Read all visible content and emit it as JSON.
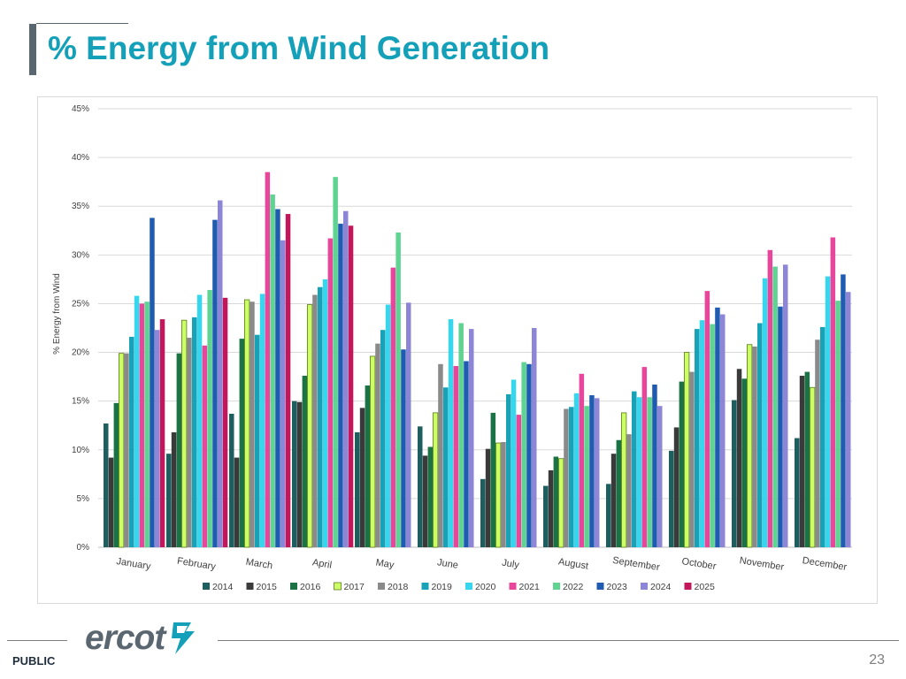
{
  "slide": {
    "title": "% Energy from Wind Generation",
    "footer_label": "PUBLIC",
    "page_number": "23",
    "logo_text": "ercot"
  },
  "chart_data": {
    "type": "bar",
    "title": "",
    "xlabel": "",
    "ylabel": "% Energy from Wind",
    "ylim": [
      0,
      45
    ],
    "yticks": [
      0,
      5,
      10,
      15,
      20,
      25,
      30,
      35,
      40,
      45
    ],
    "ytick_labels": [
      "0%",
      "5%",
      "10%",
      "15%",
      "20%",
      "25%",
      "30%",
      "35%",
      "40%",
      "45%"
    ],
    "grid": true,
    "legend_position": "bottom",
    "categories": [
      "January",
      "February",
      "March",
      "April",
      "May",
      "June",
      "July",
      "August",
      "September",
      "October",
      "November",
      "December"
    ],
    "series": [
      {
        "name": "2014",
        "color": "#1d5e5e",
        "values": [
          12.7,
          9.6,
          13.7,
          15.0,
          11.8,
          12.4,
          7.0,
          6.3,
          6.5,
          9.9,
          15.1,
          11.2
        ]
      },
      {
        "name": "2015",
        "color": "#3a3a3a",
        "values": [
          9.2,
          11.8,
          9.2,
          14.9,
          14.3,
          9.4,
          10.1,
          7.9,
          9.6,
          12.3,
          18.3,
          17.6
        ]
      },
      {
        "name": "2016",
        "color": "#1b7345",
        "values": [
          14.8,
          19.9,
          21.4,
          17.6,
          16.6,
          10.3,
          13.8,
          9.3,
          11.0,
          17.0,
          17.3,
          18.0
        ]
      },
      {
        "name": "2017",
        "color": "#ccff66",
        "values": [
          19.9,
          23.3,
          25.4,
          24.9,
          19.6,
          13.8,
          10.7,
          9.1,
          13.8,
          20.0,
          20.8,
          16.4
        ]
      },
      {
        "name": "2018",
        "color": "#8a8a8a",
        "values": [
          19.9,
          21.5,
          25.2,
          25.9,
          20.9,
          18.8,
          10.8,
          14.2,
          11.6,
          18.0,
          20.6,
          21.3
        ]
      },
      {
        "name": "2019",
        "color": "#17a2b8",
        "values": [
          21.6,
          23.6,
          21.8,
          26.7,
          22.3,
          16.4,
          15.7,
          14.4,
          16.0,
          22.4,
          23.0,
          22.6
        ]
      },
      {
        "name": "2020",
        "color": "#35d6ee",
        "values": [
          25.8,
          25.9,
          26.0,
          27.5,
          24.9,
          23.4,
          17.2,
          15.8,
          15.4,
          23.3,
          27.6,
          27.8
        ]
      },
      {
        "name": "2021",
        "color": "#e8469b",
        "values": [
          25.0,
          20.7,
          38.5,
          31.7,
          28.7,
          18.6,
          13.6,
          17.8,
          18.5,
          26.3,
          30.5,
          31.8
        ]
      },
      {
        "name": "2022",
        "color": "#5fd492",
        "values": [
          25.2,
          26.4,
          36.2,
          38.0,
          32.3,
          23.0,
          19.0,
          14.5,
          15.4,
          22.9,
          28.8,
          25.3
        ]
      },
      {
        "name": "2023",
        "color": "#1f5bb0",
        "values": [
          33.8,
          33.6,
          34.7,
          33.2,
          20.3,
          19.1,
          18.8,
          15.6,
          16.7,
          24.6,
          24.7,
          28.0
        ]
      },
      {
        "name": "2024",
        "color": "#8d86d6",
        "values": [
          22.3,
          35.6,
          31.5,
          34.5,
          25.1,
          22.4,
          22.5,
          15.3,
          14.5,
          23.9,
          29.0,
          26.2
        ]
      },
      {
        "name": "2025",
        "color": "#c2185b",
        "values": [
          23.4,
          25.6,
          34.2,
          33.0,
          null,
          null,
          null,
          null,
          null,
          null,
          null,
          null
        ]
      }
    ]
  }
}
